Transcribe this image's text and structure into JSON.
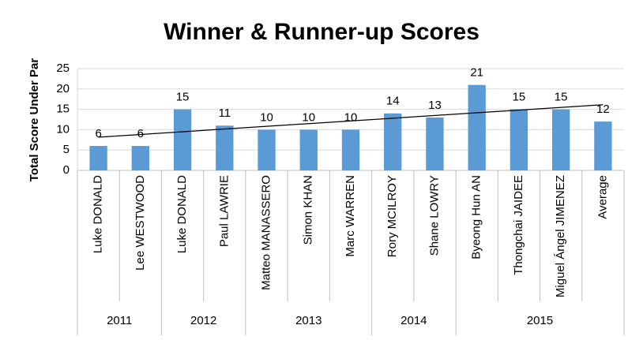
{
  "chart_data": {
    "type": "bar",
    "title": "Winner & Runner-up Scores",
    "y_label": "Total Score Under Par",
    "categories": [
      "Luke DONALD",
      "Lee WESTWOOD",
      "Luke DONALD",
      "Paul LAWRIE",
      "Matteo MANASSERO",
      "Simon KHAN",
      "Marc WARREN",
      "Rory MCILROY",
      "Shane LOWRY",
      "Byeong Hun AN",
      "Thongchai JAIDEE",
      "Miguel Ángel JIMENEZ",
      "Average"
    ],
    "category_groups": [
      "2011",
      "2011",
      "2012",
      "2012",
      "2013",
      "2013",
      "2013",
      "2014",
      "2014",
      "2015",
      "2015",
      "2015",
      "2015"
    ],
    "values": [
      6,
      6,
      15,
      11,
      10,
      10,
      10,
      14,
      13,
      21,
      15,
      15,
      12
    ],
    "color": "#5b9bd5",
    "ylim": [
      0,
      25
    ],
    "yticks": [
      0,
      5,
      10,
      15,
      20,
      25
    ],
    "grid": true,
    "trendline": "linear"
  }
}
